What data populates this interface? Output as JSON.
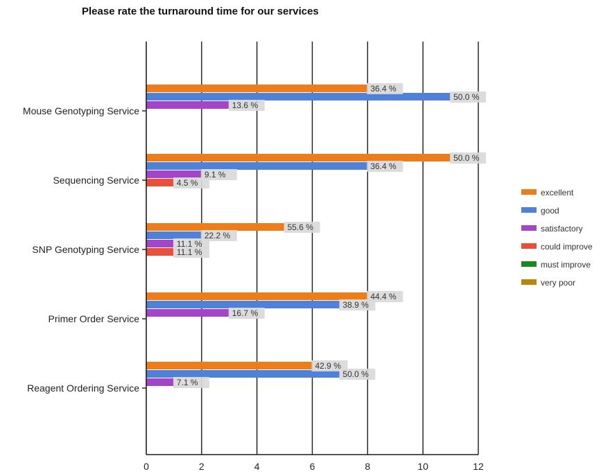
{
  "chart_data": {
    "type": "bar",
    "orientation": "horizontal",
    "title": "Please rate the turnaround time for our services",
    "xlabel": "",
    "ylabel": "",
    "xlim": [
      0,
      12
    ],
    "xticks": [
      "0",
      "2",
      "4",
      "6",
      "8",
      "10",
      "12"
    ],
    "grid": true,
    "legend_position": "right",
    "categories": [
      "Mouse Genotyping Service",
      "Sequencing Service",
      "SNP Genotyping Service",
      "Primer Order Service",
      "Reagent Ordering Service"
    ],
    "series": [
      {
        "name": "excellent",
        "color": "#ed7d1a",
        "values": [
          8,
          11,
          5,
          8,
          6
        ],
        "labels": [
          "36.4 %",
          "50.0 %",
          "55.6 %",
          "44.4 %",
          "42.9 %"
        ]
      },
      {
        "name": "good",
        "color": "#4f81d9",
        "values": [
          11,
          8,
          2,
          7,
          7
        ],
        "labels": [
          "50.0 %",
          "36.4 %",
          "22.2 %",
          "38.9 %",
          "50.0 %"
        ]
      },
      {
        "name": "satisfactory",
        "color": "#a444c8",
        "values": [
          3,
          2,
          1,
          3,
          1
        ],
        "labels": [
          "13.6 %",
          "9.1 %",
          "11.1 %",
          "16.7 %",
          "7.1 %"
        ]
      },
      {
        "name": "could improve",
        "color": "#e8503a",
        "values": [
          0,
          1,
          1,
          0,
          0
        ],
        "labels": [
          "",
          "4.5 %",
          "11.1 %",
          "",
          ""
        ]
      },
      {
        "name": "must improve",
        "color": "#1a8a1a",
        "values": [
          0,
          0,
          0,
          0,
          0
        ],
        "labels": [
          "",
          "",
          "",
          "",
          ""
        ]
      },
      {
        "name": "very poor",
        "color": "#b8860b",
        "values": [
          0,
          0,
          0,
          0,
          0
        ],
        "labels": [
          "",
          "",
          "",
          "",
          ""
        ]
      }
    ]
  }
}
